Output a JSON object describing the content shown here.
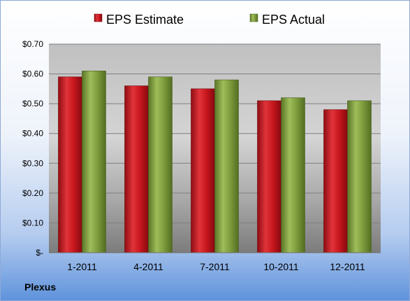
{
  "company": "Plexus",
  "colors": {
    "estimate": "#c0141c",
    "actual": "#7a9a3a"
  },
  "chart_data": {
    "type": "bar",
    "categories": [
      "1-2011",
      "4-2011",
      "7-2011",
      "10-2011",
      "12-2011"
    ],
    "series": [
      {
        "name": "EPS Estimate",
        "values": [
          0.59,
          0.56,
          0.55,
          0.51,
          0.48
        ]
      },
      {
        "name": "EPS Actual",
        "values": [
          0.61,
          0.59,
          0.58,
          0.52,
          0.51
        ]
      }
    ],
    "yticks": [
      "$-",
      "$0.10",
      "$0.20",
      "$0.30",
      "$0.40",
      "$0.50",
      "$0.60",
      "$0.70"
    ],
    "ylim": [
      0,
      0.7
    ],
    "grid": true,
    "legend_position": "top"
  }
}
